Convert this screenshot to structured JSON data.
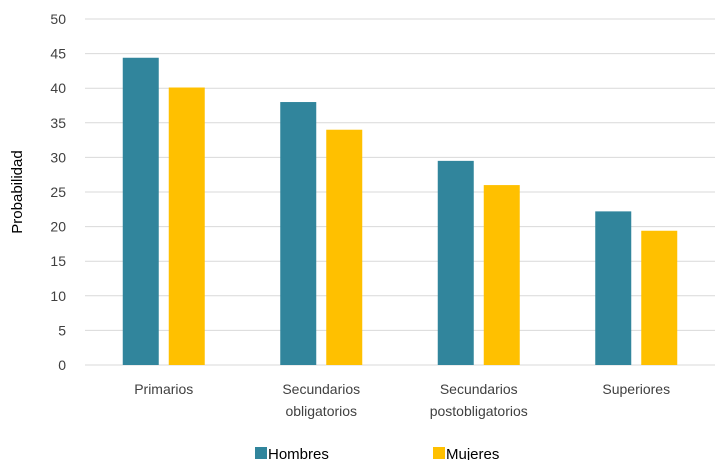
{
  "chart_data": {
    "type": "bar",
    "title": "",
    "xlabel": "",
    "ylabel": "Probabilidad",
    "ylim": [
      0,
      50
    ],
    "yticks": [
      0,
      5,
      10,
      15,
      20,
      25,
      30,
      35,
      40,
      45,
      50
    ],
    "grid": true,
    "legend_position": "bottom",
    "categories": [
      [
        "Primarios"
      ],
      [
        "Secundarios",
        "obligatorios"
      ],
      [
        "Secundarios",
        "postobligatorios"
      ],
      [
        "Superiores"
      ]
    ],
    "series": [
      {
        "name": "Hombres",
        "color": "#31859C",
        "values": [
          44.4,
          38.0,
          29.5,
          22.2
        ]
      },
      {
        "name": "Mujeres",
        "color": "#FFC000",
        "values": [
          40.1,
          34.0,
          26.0,
          19.4
        ]
      }
    ]
  }
}
